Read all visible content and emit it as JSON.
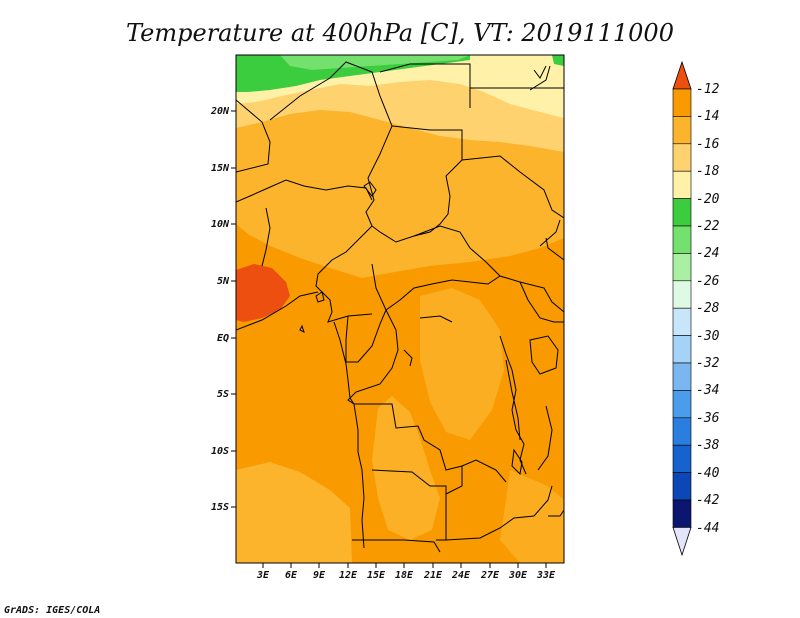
{
  "title": "Temperature at 400hPa [C], VT: 2019111000",
  "credit": "GrADS: IGES/COLA",
  "map": {
    "y_ticks": [
      "20N",
      "15N",
      "10N",
      "5N",
      "EQ",
      "5S",
      "10S",
      "15S"
    ],
    "x_ticks": [
      "3E",
      "6E",
      "9E",
      "12E",
      "15E",
      "18E",
      "21E",
      "24E",
      "27E",
      "30E",
      "33E"
    ]
  },
  "legend": {
    "levels": [
      "-12",
      "-14",
      "-16",
      "-18",
      "-20",
      "-22",
      "-24",
      "-26",
      "-28",
      "-30",
      "-32",
      "-34",
      "-36",
      "-38",
      "-40",
      "-42",
      "-44"
    ],
    "colors": [
      "#ec4f10",
      "#f89a00",
      "#fcb42c",
      "#ffd270",
      "#fff2a8",
      "#3ccd3f",
      "#74e06d",
      "#aaf0a2",
      "#dffae4",
      "#c8e6fa",
      "#a4d3f7",
      "#7ab7f1",
      "#4b9cea",
      "#2a7ee0",
      "#1663cf",
      "#0b48b6",
      "#0a1670"
    ],
    "top_color": "#ec4f10",
    "bottom_color": "#e4e4fa"
  }
}
